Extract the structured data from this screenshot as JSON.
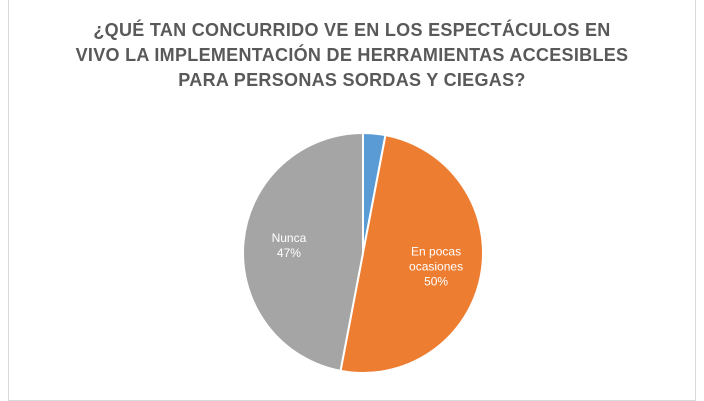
{
  "chart_data": {
    "type": "pie",
    "title": "¿QUÉ TAN CONCURRIDO VE EN LOS ESPECTÁCULOS EN VIVO LA IMPLEMENTACIÓN DE HERRAMIENTAS ACCESIBLES PARA PERSONAS SORDAS Y CIEGAS?",
    "categories": [
      null,
      "En pocas ocasiones",
      "Nunca"
    ],
    "values": [
      3,
      50,
      47
    ],
    "value_labels": [
      null,
      "50%",
      "47%"
    ],
    "colors": [
      "#5b9bd5",
      "#ed7d31",
      "#a5a5a5"
    ]
  }
}
